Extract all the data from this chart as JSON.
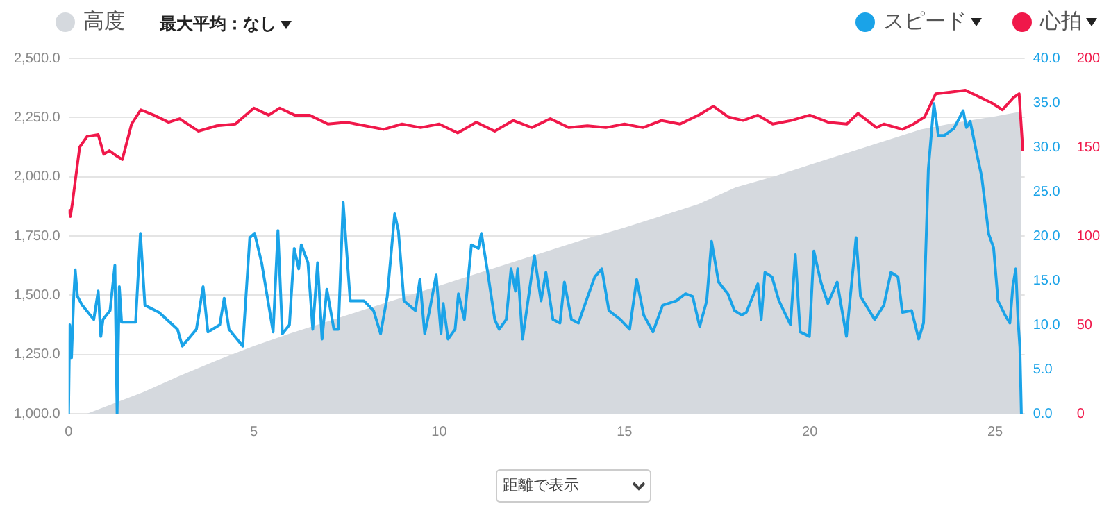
{
  "chart_data": {
    "type": "line",
    "xlim": [
      0,
      25.8
    ],
    "xticks": [
      0,
      5,
      10,
      15,
      20,
      25
    ],
    "ylim": [
      1000,
      2500
    ],
    "yticks": [
      {
        "value": 1000,
        "label": "1,000.0"
      },
      {
        "value": 1250,
        "label": "1,250.0"
      },
      {
        "value": 1500,
        "label": "1,500.0"
      },
      {
        "value": 1750,
        "label": "1,750.0"
      },
      {
        "value": 2000,
        "label": "2,000.0"
      },
      {
        "value": 2250,
        "label": "2,250.0"
      },
      {
        "value": 2500,
        "label": "2,500.0"
      }
    ],
    "y2lim": [
      0,
      40
    ],
    "y2ticks": [
      {
        "value": 0,
        "label": "0.0"
      },
      {
        "value": 5,
        "label": "5.0"
      },
      {
        "value": 10,
        "label": "10.0"
      },
      {
        "value": 15,
        "label": "15.0"
      },
      {
        "value": 20,
        "label": "20.0"
      },
      {
        "value": 25,
        "label": "25.0"
      },
      {
        "value": 30,
        "label": "30.0"
      },
      {
        "value": 35,
        "label": "35.0"
      },
      {
        "value": 40,
        "label": "40.0"
      }
    ],
    "y3lim": [
      0,
      200
    ],
    "y3ticks": [
      0,
      50,
      100,
      150,
      200
    ],
    "grid": "y",
    "legend": "top",
    "marker": "none",
    "line_style": "solid",
    "annotations": [
      "最大平均：なし",
      "距離で表示"
    ],
    "series": [
      {
        "name": "高度",
        "type": "area",
        "color": "#d5d9de",
        "x": [
          0,
          0.5,
          1,
          2,
          3,
          4,
          5,
          6,
          7,
          8,
          9,
          10,
          11,
          12,
          13,
          14,
          15,
          16,
          17,
          18,
          19,
          20,
          21,
          22,
          23,
          24,
          25,
          25.7
        ],
        "values": [
          1000,
          1000,
          1030,
          1090,
          1160,
          1225,
          1286,
          1340,
          1390,
          1440,
          1490,
          1540,
          1590,
          1640,
          1690,
          1740,
          1785,
          1835,
          1885,
          1955,
          2000,
          2050,
          2100,
          2150,
          2200,
          2230,
          2255,
          2275
        ]
      },
      {
        "name": "スピード",
        "type": "line",
        "axis": "y2",
        "color": "#1aa3e8",
        "x": [
          0,
          0.03,
          0.08,
          0.14,
          0.18,
          0.24,
          0.37,
          0.68,
          0.8,
          0.87,
          0.93,
          1.12,
          1.25,
          1.31,
          1.37,
          1.43,
          1.81,
          1.94,
          2.06,
          2.44,
          2.94,
          3.07,
          3.45,
          3.63,
          3.76,
          4.08,
          4.2,
          4.33,
          4.7,
          4.89,
          5.02,
          5.21,
          5.52,
          5.65,
          5.77,
          5.96,
          6.09,
          6.21,
          6.28,
          6.46,
          6.59,
          6.72,
          6.84,
          6.97,
          7.16,
          7.28,
          7.41,
          7.6,
          7.97,
          8.23,
          8.42,
          8.6,
          8.8,
          8.9,
          9.05,
          9.36,
          9.48,
          9.61,
          9.74,
          9.92,
          10.05,
          10.11,
          10.24,
          10.43,
          10.52,
          10.68,
          10.87,
          11.06,
          11.14,
          11.31,
          11.5,
          11.62,
          11.81,
          11.94,
          12.06,
          12.12,
          12.25,
          12.38,
          12.57,
          12.75,
          12.88,
          13.07,
          13.26,
          13.38,
          13.57,
          13.76,
          14.01,
          14.2,
          14.39,
          14.58,
          14.89,
          15.14,
          15.33,
          15.52,
          15.77,
          16.03,
          16.4,
          16.65,
          16.84,
          17.03,
          17.22,
          17.35,
          17.54,
          17.79,
          17.97,
          18.16,
          18.29,
          18.6,
          18.69,
          18.79,
          18.98,
          19.17,
          19.48,
          19.61,
          19.74,
          19.99,
          20.11,
          20.3,
          20.49,
          20.74,
          20.99,
          21.25,
          21.37,
          21.75,
          22,
          22.19,
          22.38,
          22.5,
          22.75,
          22.94,
          23.07,
          23.2,
          23.35,
          23.47,
          23.63,
          23.89,
          24.14,
          24.23,
          24.33,
          24.52,
          24.64,
          24.83,
          24.96,
          25.08,
          25.27,
          25.4,
          25.48,
          25.56,
          25.62,
          25.67,
          25.71
        ],
        "values": [
          0,
          10,
          6.3,
          13.2,
          16.2,
          13.2,
          12.2,
          10.6,
          13.8,
          8.7,
          10.6,
          11.6,
          16.7,
          0,
          14.3,
          10.3,
          10.3,
          20.3,
          12.2,
          11.4,
          9.5,
          7.6,
          9.5,
          14.3,
          9.2,
          10,
          13,
          9.5,
          7.6,
          19.8,
          20.3,
          17,
          9.2,
          20.6,
          9,
          10,
          18.6,
          16.3,
          19,
          17,
          9.5,
          17,
          8.4,
          14,
          9.5,
          9.5,
          23.8,
          12.7,
          12.7,
          11.6,
          9,
          13.2,
          22.5,
          20.6,
          12.7,
          11.6,
          15.1,
          9,
          11.6,
          15.6,
          9,
          12.4,
          8.4,
          9.5,
          13.5,
          10.6,
          19,
          18.6,
          20.3,
          15.9,
          10.6,
          9.5,
          10.6,
          16.3,
          13.8,
          16.3,
          8.4,
          12.2,
          17.8,
          12.7,
          15.9,
          10.6,
          10.2,
          14.8,
          10.6,
          10.2,
          13.2,
          15.4,
          16.3,
          11.6,
          10.6,
          9.5,
          15.1,
          11.1,
          9.2,
          12.2,
          12.7,
          13.5,
          13.2,
          9.8,
          12.7,
          19.4,
          14.8,
          13.5,
          11.6,
          11.1,
          11.4,
          14.6,
          10.6,
          15.9,
          15.4,
          12.7,
          10,
          17.9,
          9.2,
          8.7,
          18.3,
          14.8,
          12.4,
          14.8,
          8.7,
          19.8,
          13.2,
          10.6,
          12.2,
          15.9,
          15.4,
          11.4,
          11.6,
          8.4,
          10.2,
          27.5,
          34.9,
          31.3,
          31.3,
          32.1,
          34.1,
          32.2,
          32.9,
          29,
          26.7,
          20.2,
          18.7,
          12.7,
          11.1,
          10.2,
          14.3,
          16.3,
          10.6,
          7.5,
          0
        ]
      },
      {
        "name": "心拍",
        "type": "line",
        "axis": "y3",
        "color": "#f0184a",
        "x": [
          0,
          0.05,
          0.1,
          0.3,
          0.5,
          0.8,
          0.95,
          1.1,
          1.3,
          1.45,
          1.7,
          1.95,
          2.3,
          2.7,
          3,
          3.5,
          4,
          4.5,
          5,
          5.4,
          5.7,
          6.1,
          6.5,
          7,
          7.5,
          8,
          8.5,
          9,
          9.5,
          10,
          10.5,
          11,
          11.5,
          12,
          12.5,
          13,
          13.5,
          14,
          14.5,
          15,
          15.5,
          16,
          16.5,
          17,
          17.4,
          17.8,
          18.2,
          18.6,
          19,
          19.5,
          20,
          20.5,
          21,
          21.3,
          21.8,
          22,
          22.5,
          22.8,
          23.1,
          23.4,
          23.8,
          24.2,
          24.5,
          24.9,
          25.2,
          25.5,
          25.65,
          25.75
        ],
        "values": [
          115,
          111,
          118,
          150,
          156,
          157,
          146,
          148,
          145,
          143,
          163,
          171,
          168,
          164,
          166,
          159,
          162,
          163,
          172,
          168,
          172,
          168,
          168,
          163,
          164,
          162,
          160,
          163,
          161,
          163,
          158,
          164,
          159,
          165,
          161,
          166,
          161,
          162,
          161,
          163,
          161,
          165,
          163,
          168,
          173,
          167,
          165,
          168,
          163,
          165,
          168,
          164,
          163,
          169,
          161,
          163,
          160,
          163,
          167,
          180,
          181,
          182,
          179,
          175,
          171,
          178,
          180,
          148
        ]
      }
    ]
  }
}
